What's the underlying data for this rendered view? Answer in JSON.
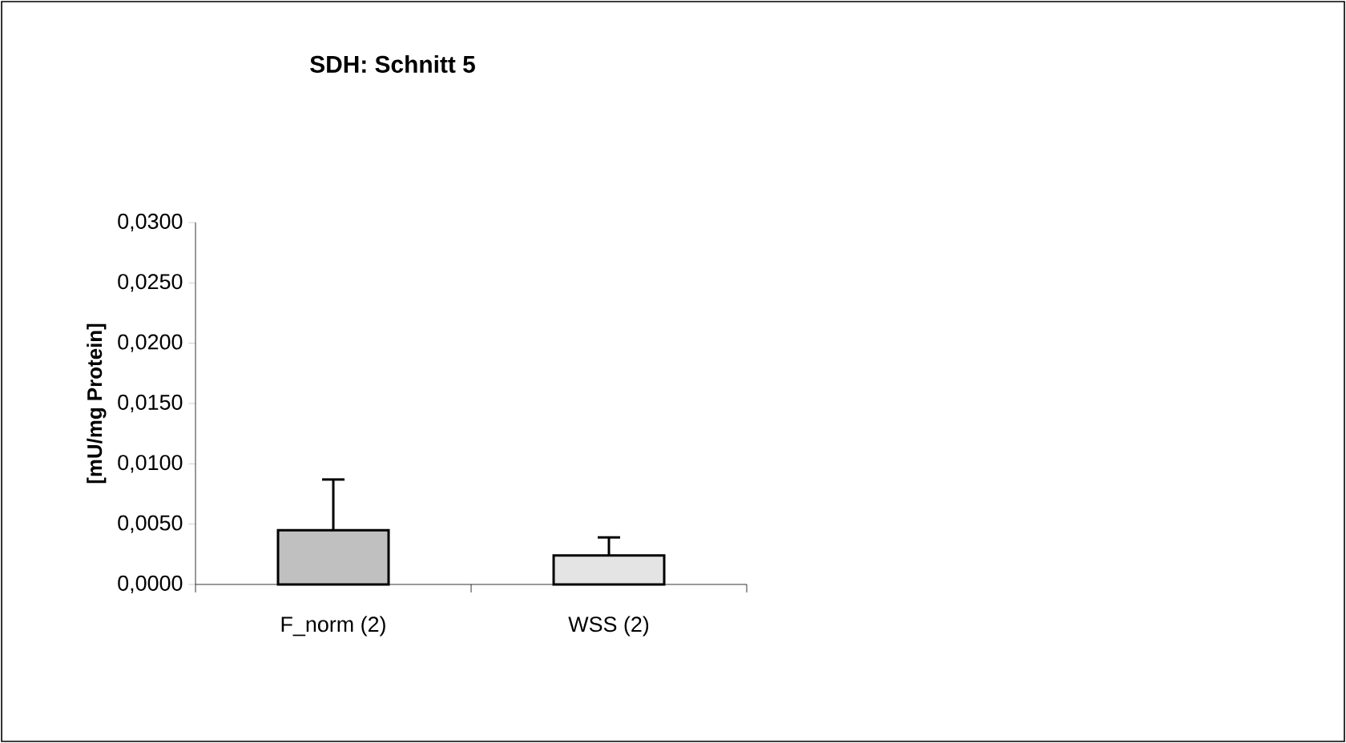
{
  "chart_data": {
    "type": "bar",
    "title": "SDH: Schnitt 5",
    "ylabel": "[mU/mg Protein]",
    "categories": [
      "F_norm (2)",
      "WSS (2)"
    ],
    "values": [
      0.0045,
      0.0024
    ],
    "errors": [
      [
        0.0045,
        0.0087
      ],
      [
        0.0024,
        0.0039
      ]
    ],
    "colors": [
      "#c0c0c0",
      "#e4e4e4"
    ],
    "ylim": [
      0,
      0.03
    ],
    "yticks": [
      {
        "value": 0,
        "label": "0,0000"
      },
      {
        "value": 0.005,
        "label": "0,0050"
      },
      {
        "value": 0.01,
        "label": "0,0100"
      },
      {
        "value": 0.015,
        "label": "0,0150"
      },
      {
        "value": 0.02,
        "label": "0,0200"
      },
      {
        "value": 0.025,
        "label": "0,0250"
      },
      {
        "value": 0.03,
        "label": "0,0300"
      }
    ],
    "grid": false
  }
}
